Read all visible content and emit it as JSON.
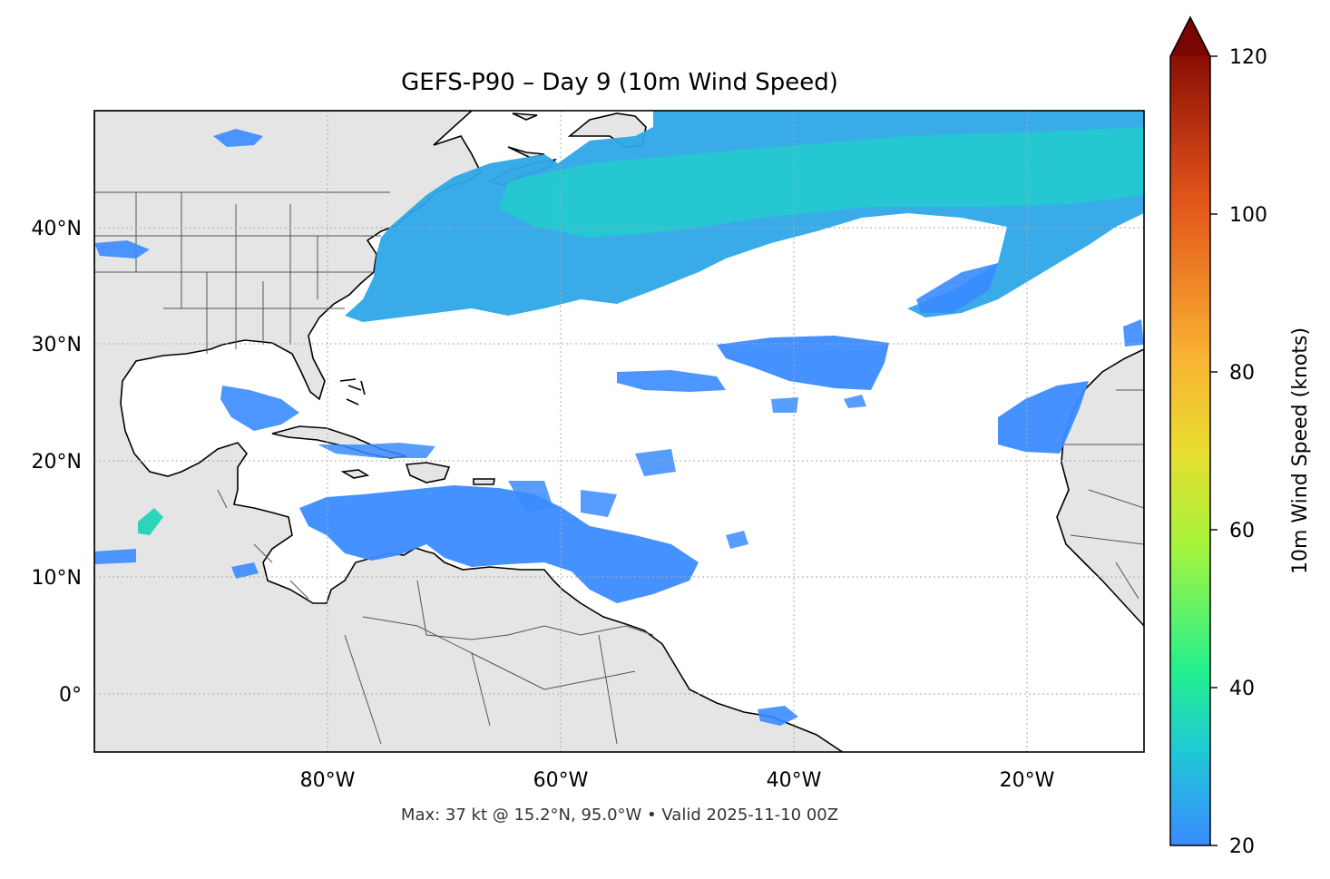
{
  "title": "GEFS-P90 – Day 9 (10m Wind Speed)",
  "footer": "Max: 37 kt @ 15.2°N, 95.0°W • Valid 2025-11-10 00Z",
  "map": {
    "lon_range": [
      -100,
      -10
    ],
    "lat_range": [
      -5,
      50
    ],
    "x_ticks": [
      {
        "value": -80,
        "label": "80°W"
      },
      {
        "value": -60,
        "label": "60°W"
      },
      {
        "value": -40,
        "label": "40°W"
      },
      {
        "value": -20,
        "label": "20°W"
      }
    ],
    "y_ticks": [
      {
        "value": 40,
        "label": "40°N"
      },
      {
        "value": 30,
        "label": "30°N"
      },
      {
        "value": 20,
        "label": "20°N"
      },
      {
        "value": 10,
        "label": "10°N"
      },
      {
        "value": 0,
        "label": "0°"
      }
    ],
    "gridlines": "dotted",
    "land_color": "#e5e5e5",
    "ocean_color": "#ffffff"
  },
  "colorbar": {
    "label": "10m Wind Speed (knots)",
    "range": [
      20,
      120
    ],
    "ticks": [
      {
        "value": 20,
        "label": "20"
      },
      {
        "value": 40,
        "label": "40"
      },
      {
        "value": 60,
        "label": "60"
      },
      {
        "value": 80,
        "label": "80"
      },
      {
        "value": 100,
        "label": "100"
      },
      {
        "value": 120,
        "label": "120"
      }
    ],
    "extend": "max",
    "colors": [
      "#3a8bff",
      "#1fc9d6",
      "#22f08f",
      "#a6f43b",
      "#f9b233",
      "#e2541a",
      "#8a0e04"
    ]
  }
}
